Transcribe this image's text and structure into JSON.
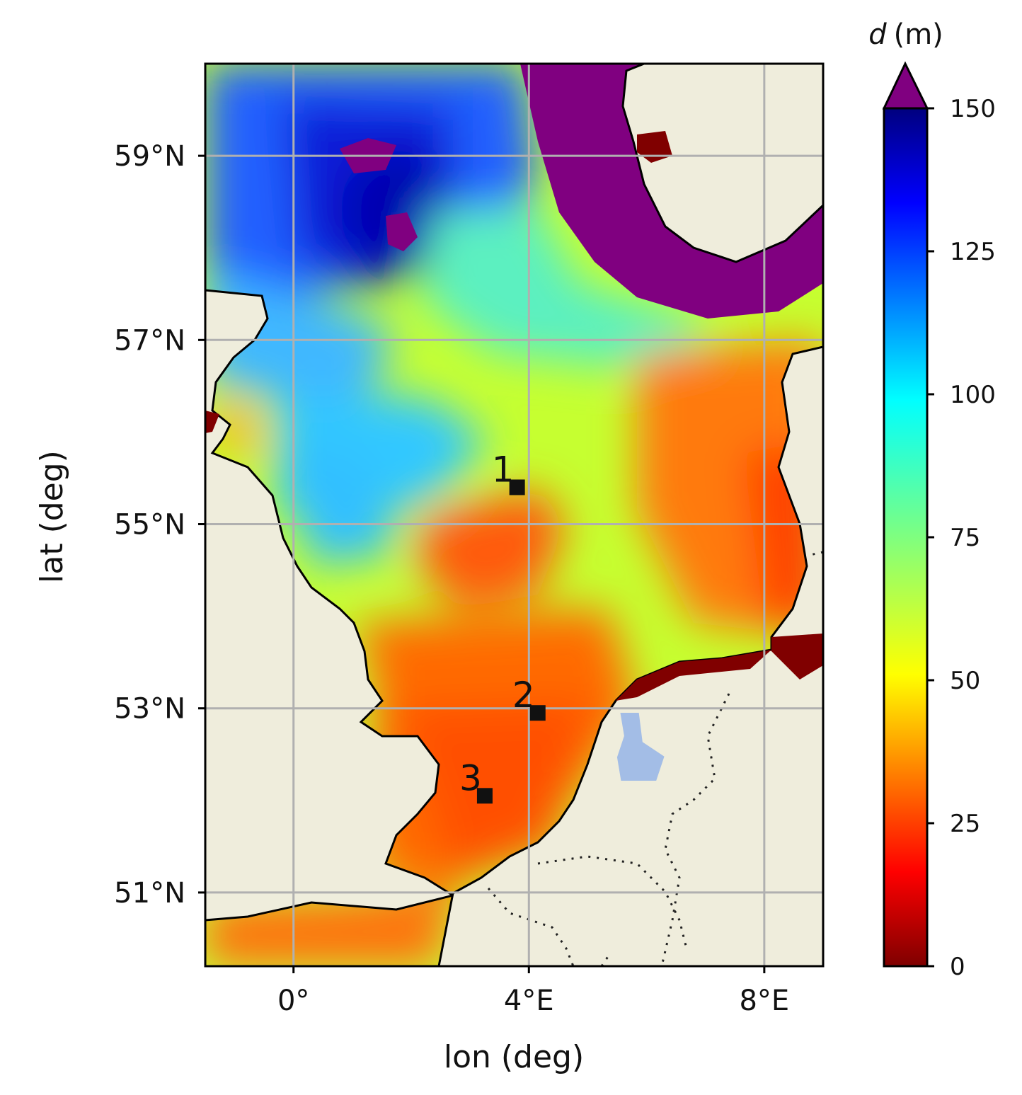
{
  "chart_data": {
    "type": "heatmap",
    "xlabel": "lon (deg)",
    "ylabel": "lat (deg)",
    "xlim": [
      -1.5,
      9.0
    ],
    "ylim": [
      50.2,
      60.0
    ],
    "grid": true,
    "x_ticks": [
      {
        "value": 0,
        "label": "0°"
      },
      {
        "value": 4,
        "label": "4°E"
      },
      {
        "value": 8,
        "label": "8°E"
      }
    ],
    "y_ticks": [
      {
        "value": 59,
        "label": "59°N"
      },
      {
        "value": 57,
        "label": "57°N"
      },
      {
        "value": 55,
        "label": "55°N"
      },
      {
        "value": 53,
        "label": "53°N"
      },
      {
        "value": 51,
        "label": "51°N"
      }
    ],
    "colorbar": {
      "title_var": "d",
      "title_unit": "(m)",
      "range": [
        0,
        150
      ],
      "extend": "max",
      "colormap": "jet",
      "ticks": [
        0,
        25,
        50,
        75,
        100,
        125,
        150
      ],
      "over_color": "#800080"
    },
    "colors": {
      "land": "#efeddc",
      "coastline": "#000000",
      "grid": "#b0b0b0",
      "lake": "#a3bde6",
      "deep": "#800080"
    },
    "markers": [
      {
        "label": "1",
        "lon": 3.8,
        "lat": 55.4
      },
      {
        "label": "2",
        "lon": 4.15,
        "lat": 52.95
      },
      {
        "label": "3",
        "lon": 3.25,
        "lat": 52.05
      }
    ]
  }
}
